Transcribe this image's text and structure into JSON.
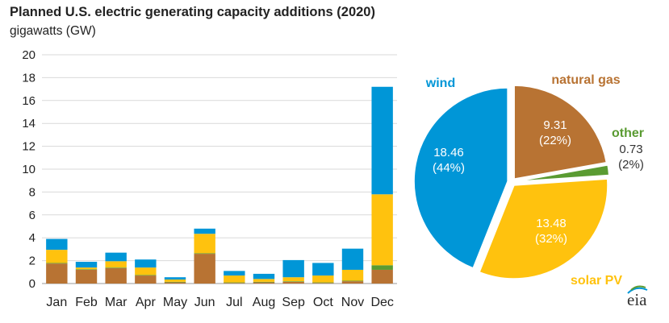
{
  "title": "Planned U.S. electric generating capacity additions (2020)",
  "subtitle": "gigawatts (GW)",
  "logo_text": "eia",
  "colors": {
    "natural_gas": "#b87333",
    "other": "#5a9b32",
    "solar": "#ffc20e",
    "wind": "#0096d7",
    "grid": "#d9d9d9",
    "axis": "#999999"
  },
  "chart_data": [
    {
      "type": "bar",
      "stacked": true,
      "title": "Planned U.S. electric generating capacity additions (2020)",
      "ylabel": "gigawatts (GW)",
      "ylim": [
        0,
        20
      ],
      "yticks": [
        0,
        2,
        4,
        6,
        8,
        10,
        12,
        14,
        16,
        18,
        20
      ],
      "grid": true,
      "categories": [
        "Jan",
        "Feb",
        "Mar",
        "Apr",
        "May",
        "Jun",
        "Jul",
        "Aug",
        "Sep",
        "Oct",
        "Nov",
        "Dec"
      ],
      "series": [
        {
          "key": "natural_gas",
          "values": [
            1.75,
            1.2,
            1.35,
            0.7,
            0.1,
            2.6,
            0.05,
            0.1,
            0.15,
            0.05,
            0.2,
            1.2
          ]
        },
        {
          "key": "other",
          "values": [
            0.05,
            0.05,
            0.05,
            0.05,
            0.05,
            0.05,
            0.05,
            0.05,
            0.05,
            0.05,
            0.05,
            0.4
          ]
        },
        {
          "key": "solar",
          "values": [
            1.15,
            0.15,
            0.55,
            0.65,
            0.2,
            1.7,
            0.6,
            0.25,
            0.35,
            0.6,
            0.95,
            6.2
          ]
        },
        {
          "key": "wind",
          "values": [
            0.95,
            0.5,
            0.75,
            0.7,
            0.2,
            0.45,
            0.4,
            0.45,
            1.5,
            1.1,
            1.85,
            9.4
          ]
        }
      ]
    },
    {
      "type": "pie",
      "slices": [
        {
          "key": "natural_gas",
          "name": "natural gas",
          "value": 9.31,
          "value_label": "9.31",
          "pct_label": "(22%)"
        },
        {
          "key": "other",
          "name": "other",
          "value": 0.73,
          "value_label": "0.73",
          "pct_label": "(2%)"
        },
        {
          "key": "solar",
          "name": "solar PV",
          "value": 13.48,
          "value_label": "13.48",
          "pct_label": "(32%)"
        },
        {
          "key": "wind",
          "name": "wind",
          "value": 18.46,
          "value_label": "18.46",
          "pct_label": "(44%)"
        }
      ]
    }
  ]
}
